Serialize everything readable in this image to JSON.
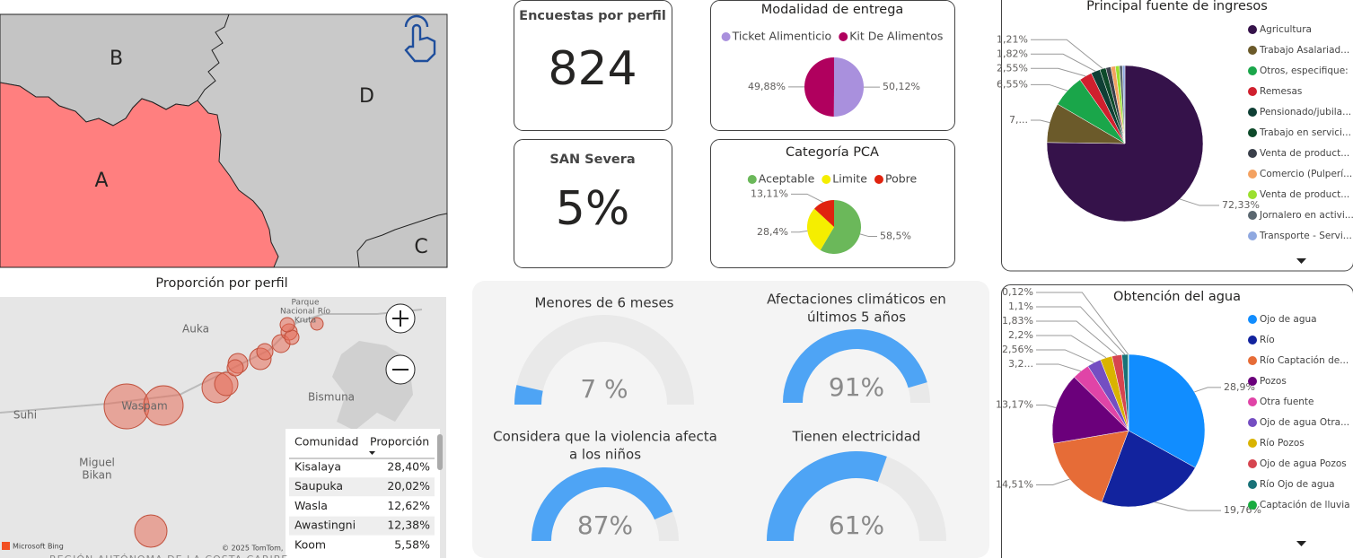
{
  "region_map": {
    "regions": [
      "A",
      "B",
      "C",
      "D"
    ]
  },
  "cards": [
    {
      "title": "Encuestas por perfil",
      "value": "824"
    },
    {
      "title": "SAN Severa",
      "value": "5%"
    }
  ],
  "pies": [
    {
      "type": "pie",
      "title": "Modalidad de entrega",
      "categories": [
        "Ticket Alimenticio",
        "Kit De Alimentos"
      ],
      "colors": [
        "#a990dd",
        "#b0005e"
      ],
      "values": [
        50.12,
        49.88
      ],
      "value_labels": [
        "50,12%",
        "49,88%"
      ]
    },
    {
      "type": "pie",
      "title": "Categoría PCA",
      "categories": [
        "Aceptable",
        "Limite",
        "Pobre"
      ],
      "colors": [
        "#6bb85a",
        "#f5ee00",
        "#e0230f"
      ],
      "values": [
        58.5,
        28.4,
        13.11
      ],
      "value_labels": [
        "58,5%",
        "28,4%",
        "13,11%"
      ]
    },
    {
      "type": "pie",
      "title": "Principal fuente de ingresos",
      "categories": [
        "Agricultura",
        "Trabajo Asalariad...",
        "Otros, especifique:",
        "Remesas",
        "Pensionado/jubila...",
        "Trabajo en servici...",
        "Venta de product...",
        "Comercio (Pulperí...",
        "Venta de product...",
        "Jornalero en activi...",
        "Transporte - Servi..."
      ],
      "colors": [
        "#35124a",
        "#6b5a2a",
        "#1aa64a",
        "#d0202e",
        "#0f3f35",
        "#0e4a2a",
        "#3a3f4a",
        "#f4a261",
        "#9be02e",
        "#5b6770",
        "#8fa8e0"
      ],
      "values": [
        72.33,
        7.9,
        6.55,
        2.55,
        1.82,
        1.21,
        1.0,
        0.9,
        0.8,
        0.6,
        0.5
      ],
      "value_labels": [
        "72,33%",
        "7,...",
        "6,55%",
        "2,55%",
        "1,82%",
        "1,21%",
        null,
        null,
        null,
        null,
        null
      ]
    },
    {
      "type": "pie",
      "title": "Obtención del agua",
      "categories": [
        "Ojo de agua",
        "Río",
        "Río Captación de...",
        "Pozos",
        "Otra fuente",
        "Ojo de agua Otra...",
        "Río Pozos",
        "Ojo de agua Pozos",
        "Río Ojo de agua",
        "Captación de lluvia"
      ],
      "colors": [
        "#118dff",
        "#12239e",
        "#e66c37",
        "#6b007b",
        "#e044a7",
        "#744ec2",
        "#d9b300",
        "#d64550",
        "#197278",
        "#1aab40"
      ],
      "values": [
        28.9,
        19.76,
        14.51,
        13.17,
        3.2,
        2.56,
        2.2,
        1.83,
        1.1,
        0.12
      ],
      "value_labels": [
        "28,9%",
        "19,76%",
        "14,51%",
        "13,17%",
        "3,2...",
        "2,56%",
        "2,2%",
        "1,83%",
        "1,1%",
        "0,12%"
      ]
    }
  ],
  "gauges": [
    {
      "title_lines": [
        "Menores de 6 meses"
      ],
      "value": 7,
      "value_label": "7 %",
      "range": [
        0,
        100
      ]
    },
    {
      "title_lines": [
        "Afectaciones climáticos en",
        "últimos 5 años"
      ],
      "value": 91,
      "value_label": "91%",
      "range": [
        0,
        100
      ]
    },
    {
      "title_lines": [
        "Considera que la violencia afecta",
        "a los niños"
      ],
      "value": 87,
      "value_label": "87%",
      "range": [
        0,
        100
      ]
    },
    {
      "title_lines": [
        "Tienen electricidad"
      ],
      "value": 61,
      "value_label": "61%",
      "range": [
        0,
        100
      ]
    }
  ],
  "bubble_map": {
    "title": "Proporción por perfil",
    "places": [
      [
        "Auka"
      ],
      [
        "Suhi"
      ],
      [
        "Waspam"
      ],
      [
        "Miguel",
        "Bikan"
      ],
      [
        "Bismuna"
      ],
      [
        "Parque",
        "Nacional Río",
        "Kruta"
      ]
    ],
    "attribution": [
      "Microsoft Bing",
      "© 2025 TomTom,"
    ],
    "region": "REGIÓN AUTÓNOMA DE LA COSTA CARIBE"
  },
  "table": {
    "columns": [
      "Comunidad",
      "Proporción"
    ],
    "rows": [
      [
        "Kisalaya",
        "28,40%"
      ],
      [
        "Saupuka",
        "20,02%"
      ],
      [
        "Wasla",
        "12,62%"
      ],
      [
        "Awastingni",
        "12,38%"
      ],
      [
        "Koom",
        "5,58%"
      ]
    ]
  }
}
